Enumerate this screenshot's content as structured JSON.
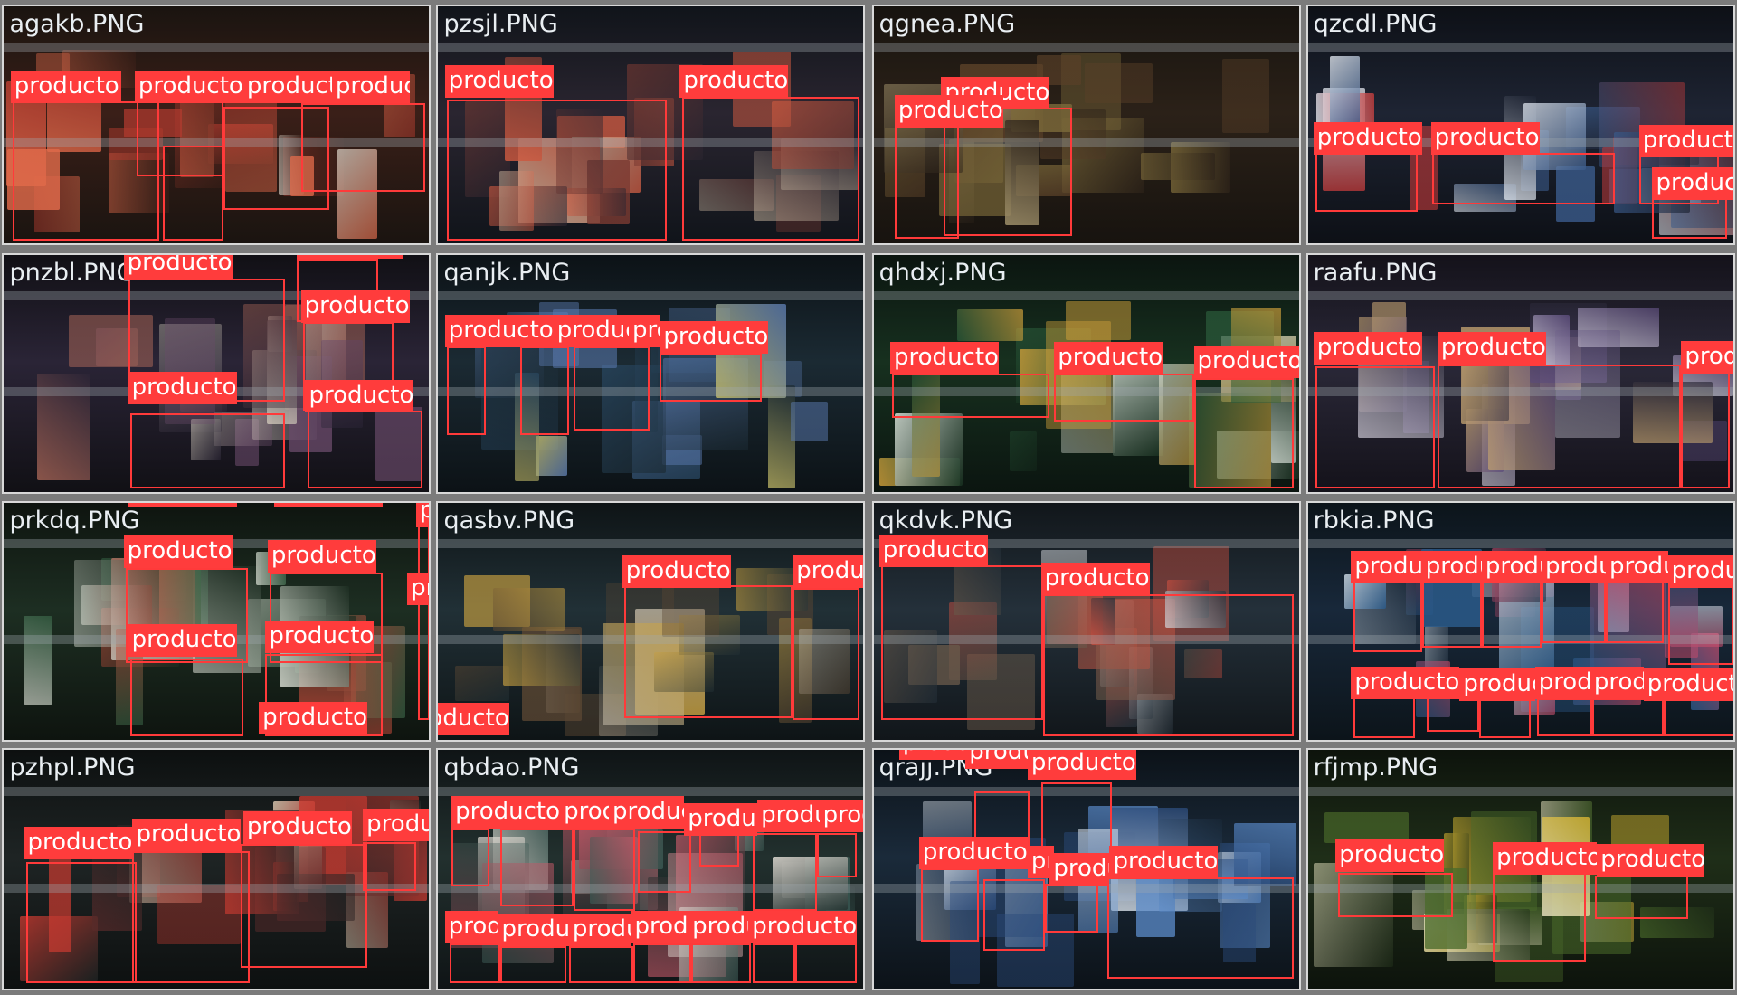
{
  "colors": {
    "frame_bg": "#7b7b7b",
    "tile_border": "#d8d8d8",
    "box": "#ff3a3a",
    "label_bg": "#ff3c3c",
    "label_text": "#ffffff",
    "filename_text": "#e9eef2"
  },
  "detection_label": "producto",
  "tiles": [
    {
      "file": "agakb.PNG",
      "theme": [
        "#1a1410",
        "#3a1f18",
        "#b23a2e",
        "#e06a4a",
        "#e8e2d6"
      ]
    },
    {
      "file": "pzsjl.PNG",
      "theme": [
        "#10141a",
        "#2a2530",
        "#7a3a32",
        "#d05a40",
        "#c9b7a0"
      ]
    },
    {
      "file": "qgnea.PNG",
      "theme": [
        "#17130f",
        "#2b2118",
        "#5a4028",
        "#7c6a3a",
        "#a89870"
      ]
    },
    {
      "file": "qzcdl.PNG",
      "theme": [
        "#0d1016",
        "#1e2433",
        "#3a5a8a",
        "#c23a3a",
        "#e0e6ee"
      ]
    },
    {
      "file": "pnzbl.PNG",
      "theme": [
        "#111015",
        "#2a2436",
        "#6a4a6a",
        "#b06a5a",
        "#d8d0c0"
      ]
    },
    {
      "file": "qanjk.PNG",
      "theme": [
        "#0c1216",
        "#1b2a33",
        "#2a4a66",
        "#5a7ab0",
        "#c9c06a"
      ]
    },
    {
      "file": "qhdxj.PNG",
      "theme": [
        "#0b1510",
        "#17301f",
        "#2a5a3a",
        "#d0a03a",
        "#e0e8e0"
      ]
    },
    {
      "file": "raafu.PNG",
      "theme": [
        "#14121a",
        "#2a2838",
        "#5a4a7a",
        "#c0a070",
        "#d8d4e0"
      ]
    },
    {
      "file": "prkdq.PNG",
      "theme": [
        "#0e140f",
        "#1d2e22",
        "#3a6a4a",
        "#c84a3a",
        "#e6eadf"
      ]
    },
    {
      "file": "qasbv.PNG",
      "theme": [
        "#0e1416",
        "#213036",
        "#5a4632",
        "#c8a040",
        "#b8b0a0"
      ]
    },
    {
      "file": "qkdvk.PNG",
      "theme": [
        "#11161a",
        "#24303a",
        "#6a5a4a",
        "#d05040",
        "#d8dde2"
      ]
    },
    {
      "file": "rbkia.PNG",
      "theme": [
        "#0c141a",
        "#18283a",
        "#2a5a8a",
        "#c84a6a",
        "#d0dce6"
      ]
    },
    {
      "file": "pzhpl.PNG",
      "theme": [
        "#0d1010",
        "#1e2424",
        "#5a2a2a",
        "#c83a30",
        "#d8c8b0"
      ]
    },
    {
      "file": "qbdao.PNG",
      "theme": [
        "#0f1416",
        "#22302e",
        "#3a5a54",
        "#c85a6a",
        "#e6e0d8"
      ]
    },
    {
      "file": "qrajj.PNG",
      "theme": [
        "#0c1218",
        "#1a2a3a",
        "#2a4a7a",
        "#5a8ac8",
        "#e0e8f0"
      ]
    },
    {
      "file": "rfjmp.PNG",
      "theme": [
        "#0d130c",
        "#1f2e18",
        "#4a6a2a",
        "#d0b030",
        "#e6e2c0"
      ]
    }
  ]
}
